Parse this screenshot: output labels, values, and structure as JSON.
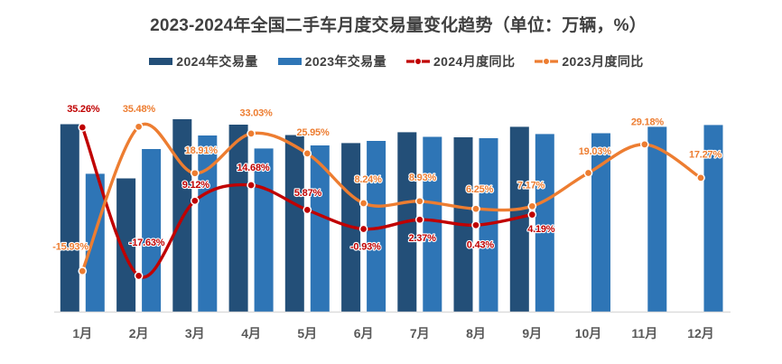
{
  "header": {
    "title": "2023-2024年全国二手车月度交易量变化趋势（单位：万辆，%）"
  },
  "legend": {
    "items": [
      {
        "label": "2024年交易量",
        "type": "bar",
        "color": "#234F78"
      },
      {
        "label": "2023年交易量",
        "type": "bar",
        "color": "#2E75B6"
      },
      {
        "label": "2024月度同比",
        "type": "line",
        "color": "#C00000"
      },
      {
        "label": "2023月度同比",
        "type": "line",
        "color": "#ED7D31"
      }
    ]
  },
  "chart_data": {
    "type": "combo-bar-line",
    "title": "2023-2024年全国二手车月度交易量变化趋势（单位：万辆，%）",
    "unit": "万辆，%",
    "categories": [
      "1月",
      "2月",
      "3月",
      "4月",
      "5月",
      "6月",
      "7月",
      "8月",
      "9月",
      "10月",
      "11月",
      "12月"
    ],
    "bar_series": [
      {
        "name": "2024年交易量",
        "color": "#234F78",
        "values_estimated": true,
        "values": [
          156.0,
          111.0,
          160.1,
          155.6,
          147.0,
          140.3,
          149.3,
          145.1,
          153.8,
          null,
          null,
          null
        ]
      },
      {
        "name": "2023年交易量",
        "color": "#2E75B6",
        "values_estimated": true,
        "values": [
          114.8,
          135.4,
          146.6,
          135.8,
          138.4,
          142.1,
          145.5,
          144.4,
          147.8,
          148.5,
          153.8,
          155.3
        ]
      }
    ],
    "line_series": [
      {
        "name": "2024月度同比",
        "color": "#C00000",
        "values": [
          35.26,
          -17.63,
          9.12,
          14.68,
          5.87,
          -0.93,
          2.37,
          0.43,
          4.19,
          null,
          null,
          null
        ],
        "labels": [
          "35.26%",
          "-17.63%",
          "9.12%",
          "14.68%",
          "5.87%",
          "-0.93%",
          "2.37%",
          "0.43%",
          "4.19%",
          null,
          null,
          null
        ]
      },
      {
        "name": "2023月度同比",
        "color": "#ED7D31",
        "values": [
          -15.93,
          35.48,
          18.91,
          33.03,
          25.95,
          8.24,
          8.93,
          6.25,
          7.17,
          19.03,
          29.18,
          17.27
        ],
        "labels": [
          "-15.93%",
          "35.48%",
          "18.91%",
          "33.03%",
          "25.95%",
          "8.24%",
          "8.93%",
          "6.25%",
          "7.17%",
          "19.03%",
          "29.18%",
          "17.27%"
        ]
      }
    ],
    "axes": {
      "x_axis_visible": true,
      "value_axis_visible": false,
      "percent_axis_visible": false,
      "gridlines": false,
      "legend_position": "top"
    }
  }
}
